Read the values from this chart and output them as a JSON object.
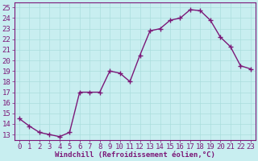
{
  "x": [
    0,
    1,
    2,
    3,
    4,
    5,
    6,
    7,
    8,
    9,
    10,
    11,
    12,
    13,
    14,
    15,
    16,
    17,
    18,
    19,
    20,
    21,
    22,
    23
  ],
  "y": [
    14.5,
    13.8,
    13.2,
    13.0,
    12.8,
    13.2,
    17.0,
    17.0,
    17.0,
    19.0,
    18.8,
    18.0,
    20.5,
    22.8,
    23.0,
    23.8,
    24.0,
    24.8,
    24.7,
    23.8,
    22.2,
    21.3,
    19.5,
    19.2
  ],
  "line_color": "#7B1878",
  "marker": "+",
  "marker_size": 4,
  "marker_linewidth": 1.0,
  "background_color": "#C8EEF0",
  "grid_color": "#AADDDD",
  "xlabel": "Windchill (Refroidissement éolien,°C)",
  "xlim": [
    -0.5,
    23.5
  ],
  "ylim": [
    12.5,
    25.5
  ],
  "yticks": [
    13,
    14,
    15,
    16,
    17,
    18,
    19,
    20,
    21,
    22,
    23,
    24,
    25
  ],
  "xticks": [
    0,
    1,
    2,
    3,
    4,
    5,
    6,
    7,
    8,
    9,
    10,
    11,
    12,
    13,
    14,
    15,
    16,
    17,
    18,
    19,
    20,
    21,
    22,
    23
  ],
  "xlabel_fontsize": 6.5,
  "tick_fontsize": 6.5,
  "linewidth": 1.0,
  "spine_color": "#7B1878",
  "tick_color": "#7B1878",
  "label_color": "#7B1878"
}
